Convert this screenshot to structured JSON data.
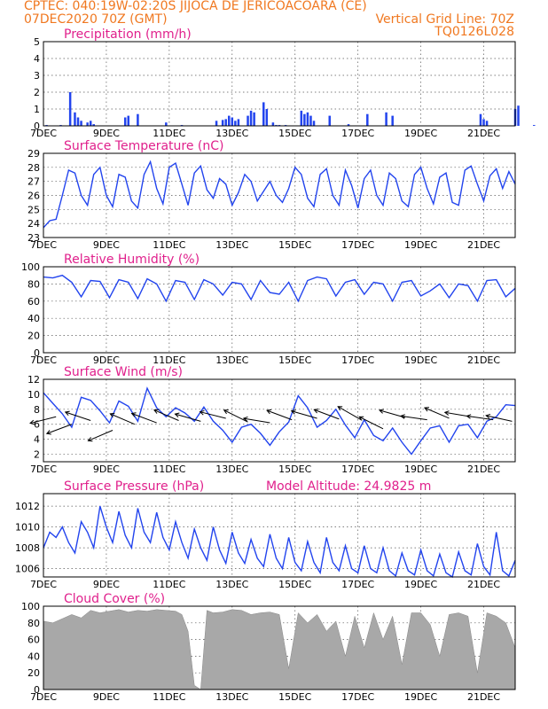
{
  "header": {
    "line1": "CPTEC:   040:19W-02:20S   JIJOCA DE JERICOACOARA (CE)",
    "line2_left": "07DEC2020 70Z (GMT)",
    "line2_right": "Vertical Grid Line: 70Z",
    "line3_right": "TQ0126L028"
  },
  "x_ticks": [
    "7DEC",
    "9DEC",
    "11DEC",
    "13DEC",
    "15DEC",
    "17DEC",
    "19DEC",
    "21DEC"
  ],
  "colors": {
    "header": "#f07820",
    "title": "#e0208c",
    "line": "#2244ee",
    "bar_precip": "#2244ee",
    "bar_cloud": "#a8a8a8"
  },
  "chart_data": [
    {
      "type": "bar",
      "title": "Precipitation (mm/h)",
      "ylim": [
        0,
        5
      ],
      "yticks": [
        "0",
        "1",
        "2",
        "3",
        "4",
        "5"
      ],
      "x": [
        0.1,
        0.55,
        0.85,
        1.0,
        1.1,
        1.2,
        1.4,
        1.5,
        1.6,
        2.6,
        2.7,
        3.0,
        3.9,
        4.4,
        5.5,
        5.7,
        5.8,
        5.9,
        6.0,
        6.1,
        6.2,
        6.5,
        6.6,
        6.7,
        7.0,
        7.1,
        7.3,
        7.4,
        7.5,
        7.7,
        8.2,
        8.3,
        8.4,
        8.5,
        8.6,
        9.1,
        9.7,
        10.3,
        10.9,
        11.1,
        13.9,
        14.0,
        14.1,
        15.0,
        15.1,
        15.6
      ],
      "values": [
        0.05,
        0.05,
        2.0,
        0.8,
        0.5,
        0.3,
        0.2,
        0.3,
        0.1,
        0.5,
        0.6,
        0.7,
        0.2,
        0.05,
        0.3,
        0.35,
        0.4,
        0.6,
        0.5,
        0.3,
        0.4,
        0.6,
        0.9,
        0.8,
        1.4,
        1.0,
        0.2,
        0.05,
        0.05,
        0.05,
        0.9,
        0.7,
        0.8,
        0.6,
        0.3,
        0.6,
        0.1,
        0.7,
        0.8,
        0.6,
        0.7,
        0.4,
        0.3,
        1.0,
        1.2,
        0.05
      ],
      "grid": true
    },
    {
      "type": "line",
      "title": "Surface Temperature (nC)",
      "ylim": [
        23,
        29
      ],
      "yticks": [
        "23",
        "24",
        "25",
        "26",
        "27",
        "28",
        "29"
      ],
      "x": [
        0,
        0.2,
        0.4,
        0.6,
        0.8,
        1.0,
        1.2,
        1.4,
        1.6,
        1.8,
        2.0,
        2.2,
        2.4,
        2.6,
        2.8,
        3.0,
        3.2,
        3.4,
        3.6,
        3.8,
        4.0,
        4.2,
        4.4,
        4.6,
        4.8,
        5.0,
        5.2,
        5.4,
        5.6,
        5.8,
        6.0,
        6.2,
        6.4,
        6.6,
        6.8,
        7.0,
        7.2,
        7.4,
        7.6,
        7.8,
        8.0,
        8.2,
        8.4,
        8.6,
        8.8,
        9.0,
        9.2,
        9.4,
        9.6,
        9.8,
        10.0,
        10.2,
        10.4,
        10.6,
        10.8,
        11.0,
        11.2,
        11.4,
        11.6,
        11.8,
        12.0,
        12.2,
        12.4,
        12.6,
        12.8,
        13.0,
        13.2,
        13.4,
        13.6,
        13.8,
        14.0,
        14.2,
        14.4,
        14.6,
        14.8,
        15.0
      ],
      "values": [
        23.7,
        24.2,
        24.3,
        26.0,
        27.8,
        27.6,
        26.0,
        25.3,
        27.5,
        28.0,
        26.0,
        25.2,
        27.5,
        27.3,
        25.6,
        25.1,
        27.5,
        28.4,
        26.5,
        25.4,
        28.0,
        28.3,
        26.8,
        25.3,
        27.6,
        28.1,
        26.4,
        25.8,
        27.2,
        26.8,
        25.3,
        26.2,
        27.5,
        27.0,
        25.6,
        26.3,
        27.0,
        26.0,
        25.5,
        26.5,
        28.0,
        27.5,
        25.8,
        25.2,
        27.5,
        27.9,
        26.0,
        25.3,
        27.8,
        26.7,
        25.1,
        27.2,
        27.8,
        26.0,
        25.3,
        27.6,
        27.2,
        25.6,
        25.2,
        27.5,
        28.0,
        26.5,
        25.4,
        27.3,
        27.6,
        25.5,
        25.3,
        27.8,
        28.1,
        26.8,
        25.6,
        27.4,
        27.9,
        26.5,
        27.7,
        26.8
      ],
      "grid": true
    },
    {
      "type": "line",
      "title": "Relative Humidity (%)",
      "ylim": [
        0,
        100
      ],
      "yticks": [
        "0",
        "20",
        "40",
        "60",
        "80",
        "100"
      ],
      "x": [
        0,
        0.3,
        0.6,
        0.9,
        1.2,
        1.5,
        1.8,
        2.1,
        2.4,
        2.7,
        3.0,
        3.3,
        3.6,
        3.9,
        4.2,
        4.5,
        4.8,
        5.1,
        5.4,
        5.7,
        6.0,
        6.3,
        6.6,
        6.9,
        7.2,
        7.5,
        7.8,
        8.1,
        8.4,
        8.7,
        9.0,
        9.3,
        9.6,
        9.9,
        10.2,
        10.5,
        10.8,
        11.1,
        11.4,
        11.7,
        12.0,
        12.3,
        12.6,
        12.9,
        13.2,
        13.5,
        13.8,
        14.1,
        14.4,
        14.7,
        15.0
      ],
      "values": [
        88,
        87,
        90,
        82,
        65,
        84,
        83,
        64,
        85,
        82,
        63,
        86,
        80,
        60,
        84,
        82,
        62,
        85,
        80,
        67,
        82,
        80,
        62,
        84,
        70,
        68,
        82,
        60,
        84,
        88,
        86,
        66,
        82,
        85,
        68,
        82,
        80,
        60,
        82,
        84,
        66,
        72,
        80,
        64,
        80,
        78,
        60,
        84,
        85,
        65,
        75
      ],
      "grid": true
    },
    {
      "type": "line",
      "title": "Surface Wind (m/s)",
      "ylim": [
        1,
        12
      ],
      "yticks": [
        "2",
        "4",
        "6",
        "8",
        "10",
        "12"
      ],
      "x": [
        0,
        0.3,
        0.6,
        0.9,
        1.2,
        1.5,
        1.8,
        2.1,
        2.4,
        2.7,
        3.0,
        3.3,
        3.6,
        3.9,
        4.2,
        4.5,
        4.8,
        5.1,
        5.4,
        5.7,
        6.0,
        6.3,
        6.6,
        6.9,
        7.2,
        7.5,
        7.8,
        8.1,
        8.4,
        8.7,
        9.0,
        9.3,
        9.6,
        9.9,
        10.2,
        10.5,
        10.8,
        11.1,
        11.4,
        11.7,
        12.0,
        12.3,
        12.6,
        12.9,
        13.2,
        13.5,
        13.8,
        14.1,
        14.4,
        14.7,
        15.0
      ],
      "values": [
        10.2,
        8.8,
        7.4,
        5.6,
        9.6,
        9.2,
        7.8,
        6.2,
        9.1,
        8.4,
        6.4,
        10.8,
        8.2,
        7.0,
        8.2,
        7.5,
        6.4,
        8.3,
        6.4,
        5.2,
        3.6,
        5.6,
        6.0,
        4.8,
        3.2,
        5.0,
        6.3,
        9.8,
        8.2,
        5.6,
        6.5,
        8.0,
        5.9,
        4.2,
        6.6,
        4.5,
        3.8,
        5.5,
        3.6,
        2.0,
        3.8,
        5.5,
        5.8,
        3.6,
        5.8,
        6.0,
        4.2,
        6.4,
        7.0,
        8.6,
        8.5
      ],
      "wind_vectors": [
        {
          "x": 0.4,
          "y": 7.0,
          "u": -8,
          "v": -2
        },
        {
          "x": 0.9,
          "y": 6.0,
          "u": -8,
          "v": -3
        },
        {
          "x": 1.5,
          "y": 6.5,
          "u": -9,
          "v": 3
        },
        {
          "x": 2.2,
          "y": 5.2,
          "u": -7,
          "v": -3
        },
        {
          "x": 2.9,
          "y": 6.0,
          "u": -7,
          "v": 3
        },
        {
          "x": 3.6,
          "y": 6.2,
          "u": -8,
          "v": 3
        },
        {
          "x": 4.3,
          "y": 6.5,
          "u": -7,
          "v": 3
        },
        {
          "x": 5.0,
          "y": 6.4,
          "u": -7,
          "v": 2
        },
        {
          "x": 5.8,
          "y": 6.8,
          "u": -8,
          "v": 2
        },
        {
          "x": 6.5,
          "y": 6.3,
          "u": -6,
          "v": 3
        },
        {
          "x": 7.2,
          "y": 6.2,
          "u": -6,
          "v": 1
        },
        {
          "x": 7.9,
          "y": 6.6,
          "u": -8,
          "v": 3
        },
        {
          "x": 8.7,
          "y": 6.8,
          "u": -7,
          "v": 2
        },
        {
          "x": 9.4,
          "y": 6.7,
          "u": -8,
          "v": 3
        },
        {
          "x": 10.1,
          "y": 6.6,
          "u": -7,
          "v": 4
        },
        {
          "x": 10.8,
          "y": 5.4,
          "u": -6,
          "v": 3
        },
        {
          "x": 11.5,
          "y": 6.9,
          "u": -7,
          "v": 2
        },
        {
          "x": 12.2,
          "y": 6.6,
          "u": -7,
          "v": 1
        },
        {
          "x": 12.9,
          "y": 6.8,
          "u": -7,
          "v": 3
        },
        {
          "x": 13.6,
          "y": 7.0,
          "u": -6,
          "v": 1
        },
        {
          "x": 14.3,
          "y": 6.6,
          "u": -7,
          "v": 1
        },
        {
          "x": 14.9,
          "y": 6.4,
          "u": -9,
          "v": 2
        }
      ],
      "grid": true
    },
    {
      "type": "line",
      "title": "Surface Pressure (hPa)",
      "annotation": "Model Altitude: 24.9825 m",
      "ylim": [
        1005.2,
        1013.2
      ],
      "yticks": [
        "1006",
        "1008",
        "1010",
        "1012"
      ],
      "x": [
        0,
        0.2,
        0.4,
        0.6,
        0.8,
        1.0,
        1.2,
        1.4,
        1.6,
        1.8,
        2.0,
        2.2,
        2.4,
        2.6,
        2.8,
        3.0,
        3.2,
        3.4,
        3.6,
        3.8,
        4.0,
        4.2,
        4.4,
        4.6,
        4.8,
        5.0,
        5.2,
        5.4,
        5.6,
        5.8,
        6.0,
        6.2,
        6.4,
        6.6,
        6.8,
        7.0,
        7.2,
        7.4,
        7.6,
        7.8,
        8.0,
        8.2,
        8.4,
        8.6,
        8.8,
        9.0,
        9.2,
        9.4,
        9.6,
        9.8,
        10.0,
        10.2,
        10.4,
        10.6,
        10.8,
        11.0,
        11.2,
        11.4,
        11.6,
        11.8,
        12.0,
        12.2,
        12.4,
        12.6,
        12.8,
        13.0,
        13.2,
        13.4,
        13.6,
        13.8,
        14.0,
        14.2,
        14.4,
        14.6,
        14.8,
        15.0
      ],
      "values": [
        1008.0,
        1009.5,
        1009.0,
        1010.0,
        1008.5,
        1007.5,
        1010.5,
        1009.5,
        1008.0,
        1012.0,
        1010.0,
        1008.5,
        1011.5,
        1009.2,
        1008.0,
        1011.8,
        1009.5,
        1008.5,
        1011.4,
        1009.0,
        1007.8,
        1010.5,
        1008.5,
        1007.0,
        1009.8,
        1008.0,
        1006.8,
        1010.0,
        1007.8,
        1006.5,
        1009.5,
        1007.5,
        1006.5,
        1008.8,
        1007.0,
        1006.2,
        1009.3,
        1007.0,
        1006.0,
        1009.0,
        1006.6,
        1005.8,
        1008.6,
        1006.6,
        1005.6,
        1009.0,
        1006.6,
        1005.8,
        1008.2,
        1006.0,
        1005.6,
        1008.2,
        1006.0,
        1005.6,
        1008.0,
        1005.8,
        1005.3,
        1007.5,
        1005.8,
        1005.4,
        1007.8,
        1005.8,
        1005.3,
        1007.4,
        1005.6,
        1005.2,
        1007.6,
        1005.8,
        1005.4,
        1008.4,
        1006.2,
        1005.4,
        1009.5,
        1005.8,
        1005.3,
        1006.8
      ],
      "grid": true
    },
    {
      "type": "area",
      "title": "Cloud Cover (%)",
      "ylim": [
        0,
        100
      ],
      "yticks": [
        "0",
        "20",
        "40",
        "60",
        "80",
        "100"
      ],
      "x": [
        0,
        0.3,
        0.6,
        0.9,
        1.2,
        1.5,
        1.8,
        2.1,
        2.4,
        2.7,
        3.0,
        3.3,
        3.6,
        3.9,
        4.2,
        4.4,
        4.6,
        4.8,
        5.0,
        5.2,
        5.4,
        5.7,
        6.0,
        6.3,
        6.6,
        6.9,
        7.2,
        7.5,
        7.8,
        8.1,
        8.4,
        8.7,
        9.0,
        9.3,
        9.6,
        9.9,
        10.2,
        10.5,
        10.8,
        11.1,
        11.4,
        11.7,
        12.0,
        12.3,
        12.6,
        12.9,
        13.2,
        13.5,
        13.8,
        14.1,
        14.4,
        14.7,
        15.0
      ],
      "values": [
        82,
        80,
        85,
        90,
        86,
        95,
        92,
        94,
        96,
        93,
        95,
        94,
        96,
        95,
        94,
        90,
        70,
        5,
        0,
        95,
        92,
        93,
        96,
        95,
        90,
        92,
        93,
        90,
        25,
        92,
        80,
        90,
        70,
        82,
        40,
        88,
        50,
        92,
        60,
        88,
        30,
        92,
        92,
        78,
        40,
        90,
        92,
        88,
        20,
        92,
        88,
        80,
        50
      ],
      "grid": true
    }
  ]
}
